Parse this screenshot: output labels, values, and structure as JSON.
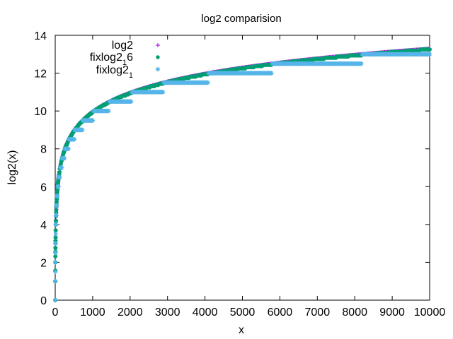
{
  "chart_data": {
    "type": "scatter",
    "title": "log2 comparision",
    "xlabel": "x",
    "ylabel": "log2(x)",
    "xlim": [
      0,
      10000
    ],
    "ylim": [
      0,
      14
    ],
    "x_ticks": [
      0,
      1000,
      2000,
      3000,
      4000,
      5000,
      6000,
      7000,
      8000,
      9000,
      10000
    ],
    "y_ticks": [
      0,
      2,
      4,
      6,
      8,
      10,
      12,
      14
    ],
    "x_tick_labels": [
      "0",
      "1000",
      "2000",
      "3000",
      "4000",
      "5000",
      "6000",
      "7000",
      "8000",
      "9000",
      "10000"
    ],
    "y_tick_labels": [
      "0",
      "2",
      "4",
      "6",
      "8",
      "10",
      "12",
      "14"
    ],
    "grid": false,
    "legend_position": "top-left",
    "series": [
      {
        "name": "log2",
        "name_sub": "",
        "marker": "plus",
        "color": "#9400d3",
        "function": "log2(x)",
        "quantization_step": null,
        "x_range": [
          1,
          10000
        ]
      },
      {
        "name": "fixlog2",
        "name_sub": "1",
        "name_suffix": "6",
        "marker": "filled-circle",
        "color": "#009e73",
        "function": "floor(log2(x) * 16) / 16",
        "quantization_step": 0.0625,
        "x_range": [
          1,
          10000
        ]
      },
      {
        "name": "fixlog2",
        "name_sub": "1",
        "name_suffix": "",
        "marker": "star",
        "color": "#56b4e9",
        "function": "floor(log2(x) * 2) / 2",
        "quantization_step": 0.5,
        "x_range": [
          1,
          10000
        ]
      }
    ]
  }
}
